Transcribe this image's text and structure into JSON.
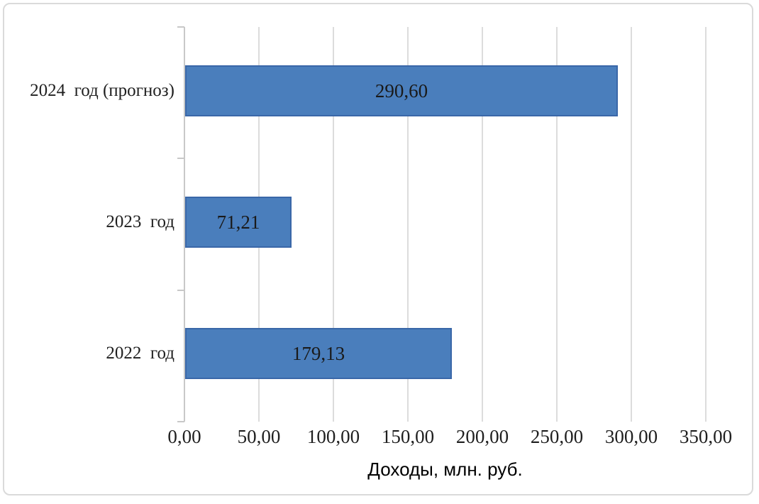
{
  "chart_data": {
    "type": "bar",
    "orientation": "horizontal",
    "title": "",
    "categories": [
      "2024  год (прогноз)",
      "2023  год",
      "2022  год"
    ],
    "values": [
      290.6,
      71.21,
      179.13
    ],
    "value_labels": [
      "290,60",
      "71,21",
      "179,13"
    ],
    "xlabel": "Доходы, млн. руб.",
    "ylabel": "",
    "xlim": [
      0,
      350
    ],
    "xtick_values": [
      0,
      50,
      100,
      150,
      200,
      250,
      300,
      350
    ],
    "xtick_labels": [
      "0,00",
      "50,00",
      "100,00",
      "150,00",
      "200,00",
      "250,00",
      "300,00",
      "350,00"
    ],
    "grid": true,
    "legend": "none",
    "colors": {
      "bar_fill": "#4a7ebc",
      "bar_border": "#3a67a8",
      "gridline": "#dcdcdc",
      "axis_line": "#c8c8c8",
      "frame_border": "#dadada",
      "text": "#1f1f1f",
      "background": "#ffffff"
    }
  }
}
